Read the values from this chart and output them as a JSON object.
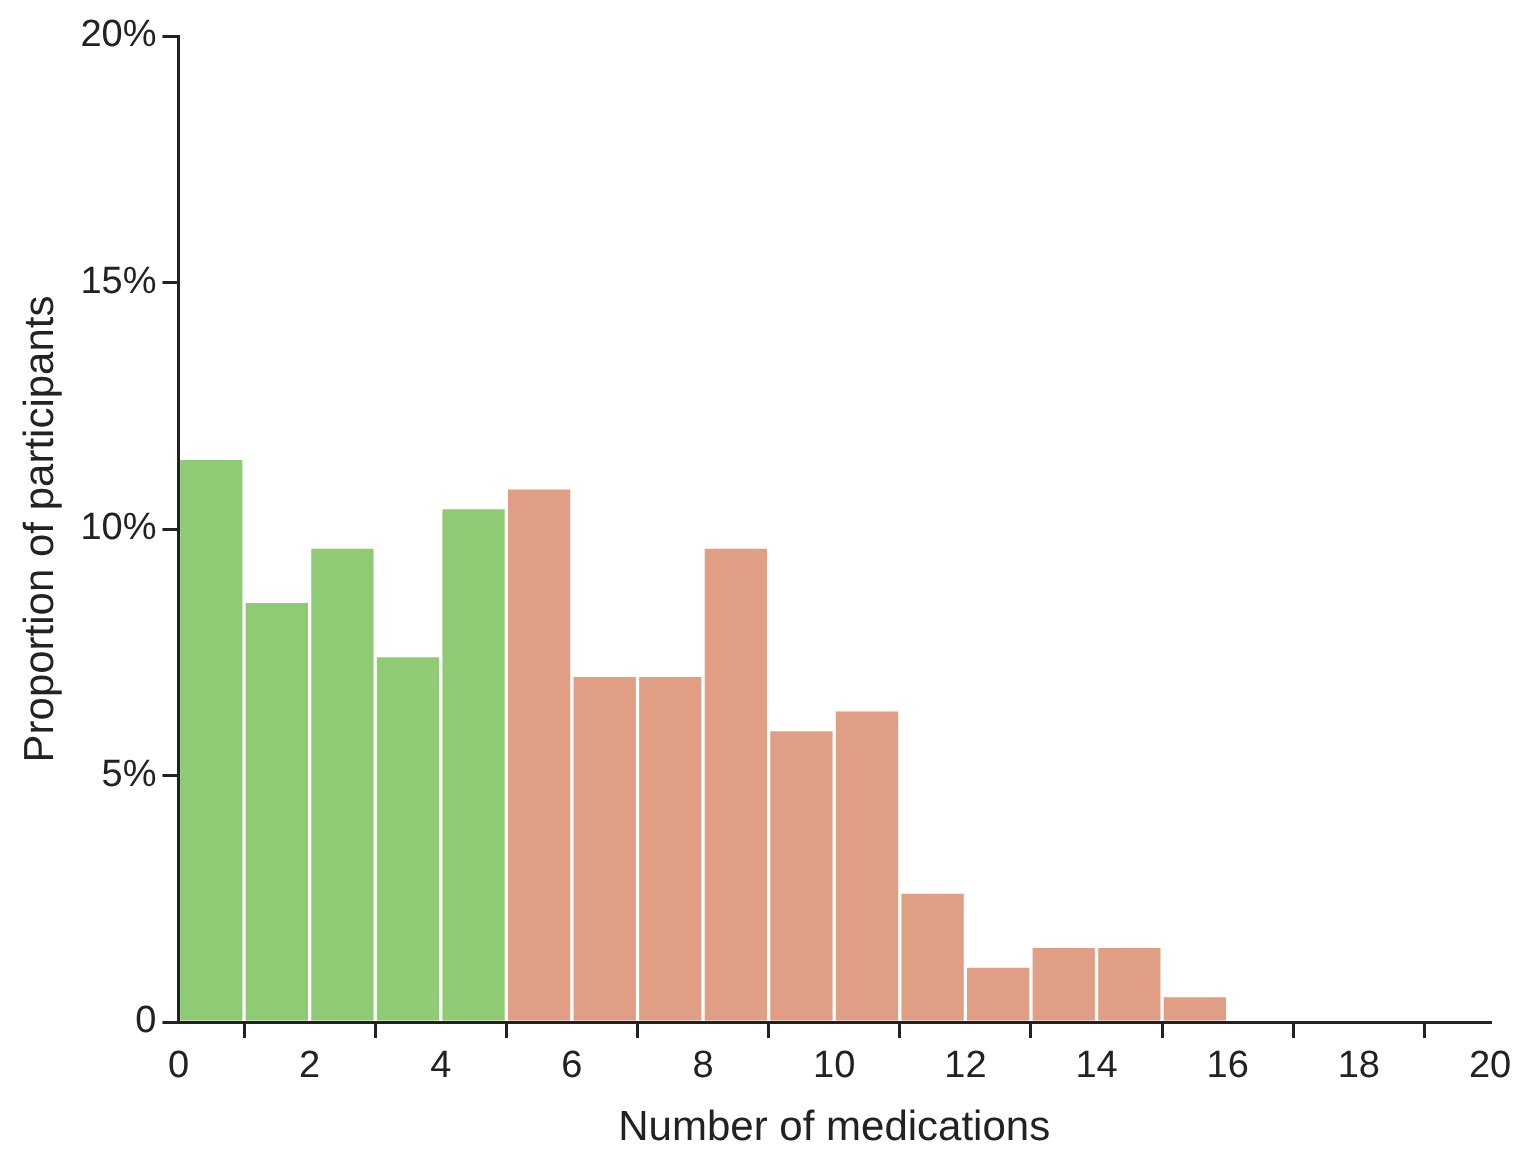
{
  "chart_data": {
    "type": "histogram",
    "xlabel": "Number of medications",
    "ylabel": "Proportion of participants",
    "bins": [
      0,
      1,
      2,
      3,
      4,
      5,
      6,
      7,
      8,
      9,
      10,
      11,
      12,
      13,
      14,
      15,
      16
    ],
    "values": [
      11.4,
      8.5,
      9.6,
      7.4,
      10.4,
      10.8,
      7.0,
      7.0,
      9.6,
      5.9,
      6.3,
      2.6,
      1.1,
      1.5,
      1.5,
      0.5
    ],
    "colors": [
      "#8fca74",
      "#8fca74",
      "#8fca74",
      "#8fca74",
      "#8fca74",
      "#e09e85",
      "#e09e85",
      "#e09e85",
      "#e09e85",
      "#e09e85",
      "#e09e85",
      "#e09e85",
      "#e09e85",
      "#e09e85",
      "#e09e85",
      "#e09e85"
    ],
    "xlim": [
      0,
      20
    ],
    "xticks": [
      0,
      2,
      4,
      6,
      8,
      10,
      12,
      14,
      16,
      18,
      20
    ],
    "ylim": [
      0,
      20
    ],
    "yticks": [
      {
        "value": 0,
        "label": "0"
      },
      {
        "value": 5,
        "label": "5%"
      },
      {
        "value": 10,
        "label": "10%"
      },
      {
        "value": 15,
        "label": "15%"
      },
      {
        "value": 20,
        "label": "20%"
      }
    ],
    "grid": false,
    "legend": false
  }
}
